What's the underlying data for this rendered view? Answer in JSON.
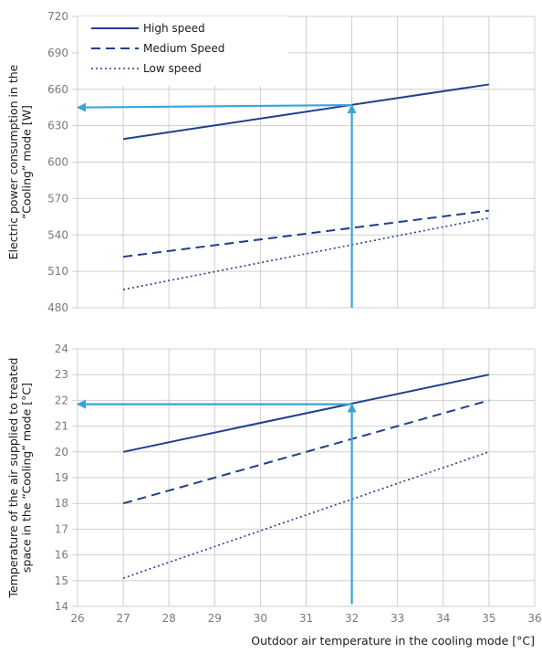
{
  "chart_data": [
    {
      "type": "line",
      "ylabel": [
        "Electric power consumption in the",
        "“Cooling” mode [W]"
      ],
      "ylim": [
        480,
        720
      ],
      "yticks": [
        480,
        510,
        540,
        570,
        600,
        630,
        660,
        690,
        720
      ],
      "xlim": [
        26,
        36
      ],
      "grid": true,
      "legend_position": "top-left",
      "series": [
        {
          "name": "High speed",
          "style": "solid",
          "x": [
            27,
            35
          ],
          "y": [
            619,
            664
          ]
        },
        {
          "name": "Medium Speed",
          "style": "dashed",
          "x": [
            27,
            35
          ],
          "y": [
            522,
            560
          ]
        },
        {
          "name": "Low speed",
          "style": "dotted",
          "x": [
            27,
            35
          ],
          "y": [
            495,
            554
          ]
        }
      ],
      "annotation_path": [
        [
          32,
          480
        ],
        [
          32,
          647
        ],
        [
          26,
          645
        ]
      ]
    },
    {
      "type": "line",
      "ylabel": [
        "Temperature of the air supplied to treated",
        "space in the “Cooling” mode [°C]"
      ],
      "ylim": [
        14,
        24
      ],
      "yticks": [
        14,
        15,
        16,
        17,
        18,
        19,
        20,
        21,
        22,
        23,
        24
      ],
      "xlim": [
        26,
        36
      ],
      "xticks": [
        26,
        27,
        28,
        29,
        30,
        31,
        32,
        33,
        34,
        35,
        36
      ],
      "xlabel": "Outdoor air temperature in the cooling mode [°C]",
      "grid": true,
      "series": [
        {
          "style": "solid",
          "x": [
            27,
            35
          ],
          "y": [
            20,
            23
          ]
        },
        {
          "style": "dashed",
          "x": [
            27,
            35
          ],
          "y": [
            18,
            22
          ]
        },
        {
          "style": "dotted",
          "x": [
            27,
            35
          ],
          "y": [
            15.1,
            20
          ]
        }
      ],
      "annotation_path": [
        [
          32,
          14.1
        ],
        [
          32,
          21.85
        ],
        [
          26,
          21.85
        ]
      ]
    }
  ],
  "colors": {
    "series": "#1f3f8f",
    "annotation": "#3aa3dc",
    "grid": "#cfcfcf",
    "tick": "#7a7a7a"
  }
}
